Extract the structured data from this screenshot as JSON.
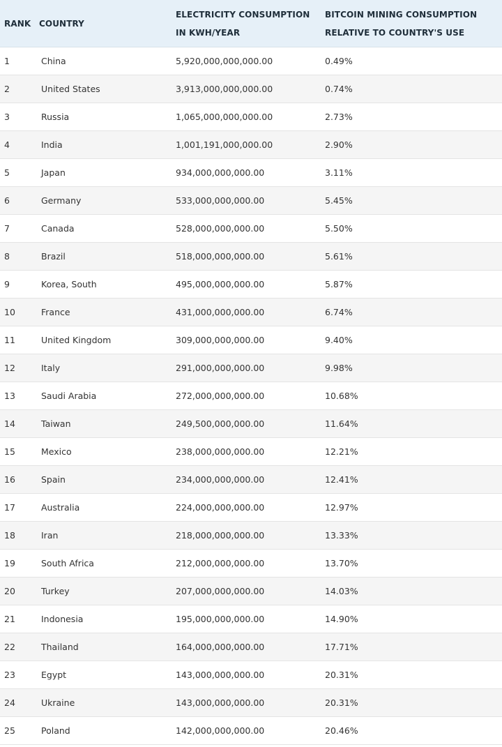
{
  "header": {
    "rank": "RANK",
    "country": "COUNTRY",
    "electricity_line1": "ELECTRICITY CONSUMPTION",
    "electricity_line2": "IN KWH/YEAR",
    "bitcoin_line1": "BITCOIN MINING CONSUMPTION",
    "bitcoin_line2": "RELATIVE TO COUNTRY'S USE"
  },
  "rows": [
    {
      "rank": "1",
      "country": "China",
      "electricity": "5,920,000,000,000.00",
      "bitcoin": "0.49%"
    },
    {
      "rank": "2",
      "country": "United States",
      "electricity": "3,913,000,000,000.00",
      "bitcoin": "0.74%"
    },
    {
      "rank": "3",
      "country": "Russia",
      "electricity": "1,065,000,000,000.00",
      "bitcoin": "2.73%"
    },
    {
      "rank": "4",
      "country": "India",
      "electricity": "1,001,191,000,000.00",
      "bitcoin": "2.90%"
    },
    {
      "rank": "5",
      "country": "Japan",
      "electricity": "934,000,000,000.00",
      "bitcoin": "3.11%"
    },
    {
      "rank": "6",
      "country": "Germany",
      "electricity": "533,000,000,000.00",
      "bitcoin": "5.45%"
    },
    {
      "rank": "7",
      "country": "Canada",
      "electricity": "528,000,000,000.00",
      "bitcoin": "5.50%"
    },
    {
      "rank": "8",
      "country": "Brazil",
      "electricity": "518,000,000,000.00",
      "bitcoin": "5.61%"
    },
    {
      "rank": "9",
      "country": "Korea, South",
      "electricity": "495,000,000,000.00",
      "bitcoin": "5.87%"
    },
    {
      "rank": "10",
      "country": "France",
      "electricity": "431,000,000,000.00",
      "bitcoin": "6.74%"
    },
    {
      "rank": "11",
      "country": "United Kingdom",
      "electricity": "309,000,000,000.00",
      "bitcoin": "9.40%"
    },
    {
      "rank": "12",
      "country": "Italy",
      "electricity": "291,000,000,000.00",
      "bitcoin": "9.98%"
    },
    {
      "rank": "13",
      "country": "Saudi Arabia",
      "electricity": "272,000,000,000.00",
      "bitcoin": "10.68%"
    },
    {
      "rank": "14",
      "country": "Taiwan",
      "electricity": "249,500,000,000.00",
      "bitcoin": "11.64%"
    },
    {
      "rank": "15",
      "country": "Mexico",
      "electricity": "238,000,000,000.00",
      "bitcoin": "12.21%"
    },
    {
      "rank": "16",
      "country": "Spain",
      "electricity": "234,000,000,000.00",
      "bitcoin": "12.41%"
    },
    {
      "rank": "17",
      "country": "Australia",
      "electricity": "224,000,000,000.00",
      "bitcoin": "12.97%"
    },
    {
      "rank": "18",
      "country": "Iran",
      "electricity": "218,000,000,000.00",
      "bitcoin": "13.33%"
    },
    {
      "rank": "19",
      "country": "South Africa",
      "electricity": "212,000,000,000.00",
      "bitcoin": "13.70%"
    },
    {
      "rank": "20",
      "country": "Turkey",
      "electricity": "207,000,000,000.00",
      "bitcoin": "14.03%"
    },
    {
      "rank": "21",
      "country": "Indonesia",
      "electricity": "195,000,000,000.00",
      "bitcoin": "14.90%"
    },
    {
      "rank": "22",
      "country": "Thailand",
      "electricity": "164,000,000,000.00",
      "bitcoin": "17.71%"
    },
    {
      "rank": "23",
      "country": "Egypt",
      "electricity": "143,000,000,000.00",
      "bitcoin": "20.31%"
    },
    {
      "rank": "24",
      "country": "Ukraine",
      "electricity": "143,000,000,000.00",
      "bitcoin": "20.31%"
    },
    {
      "rank": "25",
      "country": "Poland",
      "electricity": "142,000,000,000.00",
      "bitcoin": "20.46%"
    }
  ],
  "colors": {
    "header_bg": "#e6f0f8",
    "row_alt_bg": "#f5f5f5",
    "text": "#333333"
  }
}
